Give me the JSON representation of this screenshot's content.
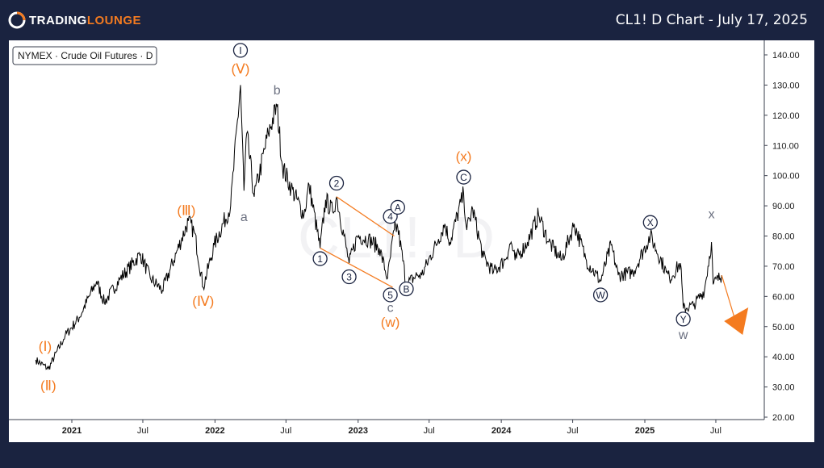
{
  "header": {
    "logo_prefix": "TRADING",
    "logo_suffix": "LOUNGE",
    "title": "CL1! D Chart - July 17, 2025",
    "accent_color": "#f47b20",
    "background_color": "#1a2340"
  },
  "chart_data": {
    "type": "line",
    "symbol_label": "NYMEX · Crude Oil Futures · D",
    "watermark": "CL1!, D",
    "x_ticks": [
      "2021",
      "Jul",
      "2022",
      "Jul",
      "2023",
      "Jul",
      "2024",
      "Jul",
      "2025",
      "Jul"
    ],
    "y_ticks": [
      "140.00",
      "130.00",
      "120.00",
      "110.00",
      "100.00",
      "90.00",
      "80.00",
      "70.00",
      "60.00",
      "50.00",
      "40.00",
      "30.00",
      "20.00"
    ],
    "ylim": [
      20,
      143
    ],
    "grid": false,
    "series": [
      {
        "values_by_date": [
          [
            "2020-10-01",
            39
          ],
          [
            "2020-11-02",
            36
          ],
          [
            "2020-12-15",
            47
          ],
          [
            "2021-01-20",
            53
          ],
          [
            "2021-03-05",
            65
          ],
          [
            "2021-03-25",
            58
          ],
          [
            "2021-05-05",
            66
          ],
          [
            "2021-06-25",
            74
          ],
          [
            "2021-07-20",
            66
          ],
          [
            "2021-08-20",
            62
          ],
          [
            "2021-10-25",
            85
          ],
          [
            "2021-11-10",
            81
          ],
          [
            "2021-12-02",
            63
          ],
          [
            "2021-12-30",
            77
          ],
          [
            "2022-02-10",
            90
          ],
          [
            "2022-03-07",
            130
          ],
          [
            "2022-03-16",
            95
          ],
          [
            "2022-03-23",
            114
          ],
          [
            "2022-04-11",
            93
          ],
          [
            "2022-05-17",
            114
          ],
          [
            "2022-06-08",
            123
          ],
          [
            "2022-06-22",
            103
          ],
          [
            "2022-07-14",
            96
          ],
          [
            "2022-08-16",
            87
          ],
          [
            "2022-08-29",
            97
          ],
          [
            "2022-09-26",
            76
          ],
          [
            "2022-10-10",
            92
          ],
          [
            "2022-10-28",
            88
          ],
          [
            "2022-11-07",
            93
          ],
          [
            "2022-12-09",
            71
          ],
          [
            "2022-12-30",
            80
          ],
          [
            "2023-01-27",
            79
          ],
          [
            "2023-02-24",
            76
          ],
          [
            "2023-03-17",
            66
          ],
          [
            "2023-04-03",
            82
          ],
          [
            "2023-04-12",
            83
          ],
          [
            "2023-05-04",
            64
          ],
          [
            "2023-05-31",
            67
          ],
          [
            "2023-06-12",
            67
          ],
          [
            "2023-07-25",
            79
          ],
          [
            "2023-08-10",
            84
          ],
          [
            "2023-08-23",
            78
          ],
          [
            "2023-09-27",
            94
          ],
          [
            "2023-10-05",
            82
          ],
          [
            "2023-10-20",
            89
          ],
          [
            "2023-11-16",
            73
          ],
          [
            "2023-12-12",
            68
          ],
          [
            "2024-01-10",
            72
          ],
          [
            "2024-01-26",
            78
          ],
          [
            "2024-02-05",
            72
          ],
          [
            "2024-03-08",
            78
          ],
          [
            "2024-04-05",
            87
          ],
          [
            "2024-05-01",
            78
          ],
          [
            "2024-06-03",
            72
          ],
          [
            "2024-07-05",
            84
          ],
          [
            "2024-08-05",
            72
          ],
          [
            "2024-09-10",
            65
          ],
          [
            "2024-10-07",
            77
          ],
          [
            "2024-10-25",
            67
          ],
          [
            "2024-12-02",
            68
          ],
          [
            "2025-01-15",
            80
          ],
          [
            "2025-02-25",
            68
          ],
          [
            "2025-03-05",
            66
          ],
          [
            "2025-04-02",
            71
          ],
          [
            "2025-04-09",
            56
          ],
          [
            "2025-05-05",
            57
          ],
          [
            "2025-06-02",
            62
          ],
          [
            "2025-06-20",
            78
          ],
          [
            "2025-06-24",
            64
          ],
          [
            "2025-07-16",
            67
          ]
        ]
      }
    ],
    "wave_labels": [
      {
        "text": "Ⅰ",
        "date": "2020-10-25",
        "price": 43.5,
        "color": "#f47b20",
        "style": "paren"
      },
      {
        "text": "Ⅱ",
        "date": "2020-11-02",
        "price": 30.5,
        "color": "#f47b20",
        "style": "paren"
      },
      {
        "text": "Ⅲ",
        "date": "2021-10-20",
        "price": 88.5,
        "color": "#f47b20",
        "style": "paren"
      },
      {
        "text": "Ⅳ",
        "date": "2021-12-02",
        "price": 58.5,
        "color": "#f47b20",
        "style": "paren"
      },
      {
        "text": "Ⅴ",
        "date": "2022-03-07",
        "price": 135.5,
        "color": "#f47b20",
        "style": "paren"
      },
      {
        "text": "Ⅰ",
        "date": "2022-03-07",
        "price": 141.5,
        "color": "#1a2340",
        "style": "circle"
      },
      {
        "text": "a",
        "date": "2022-03-16",
        "price": 86.5,
        "color": "#6b7080",
        "style": "plain"
      },
      {
        "text": "b",
        "date": "2022-06-08",
        "price": 128.5,
        "color": "#6b7080",
        "style": "plain"
      },
      {
        "text": "1",
        "date": "2022-09-26",
        "price": 72.5,
        "color": "#1a2340",
        "style": "circle"
      },
      {
        "text": "2",
        "date": "2022-11-07",
        "price": 97.5,
        "color": "#1a2340",
        "style": "circle"
      },
      {
        "text": "3",
        "date": "2022-12-09",
        "price": 66.5,
        "color": "#1a2340",
        "style": "circle"
      },
      {
        "text": "4",
        "date": "2023-03-24",
        "price": 86.5,
        "color": "#1a2340",
        "style": "circle"
      },
      {
        "text": "5",
        "date": "2023-03-24",
        "price": 60.5,
        "color": "#1a2340",
        "style": "circle"
      },
      {
        "text": "c",
        "date": "2023-03-24",
        "price": 56.5,
        "color": "#6b7080",
        "style": "plain"
      },
      {
        "text": "w",
        "date": "2023-03-24",
        "price": 51.5,
        "color": "#f47b20",
        "style": "paren"
      },
      {
        "text": "A",
        "date": "2023-04-12",
        "price": 89.5,
        "color": "#1a2340",
        "style": "circle"
      },
      {
        "text": "B",
        "date": "2023-05-04",
        "price": 62.5,
        "color": "#1a2340",
        "style": "circle"
      },
      {
        "text": "x",
        "date": "2023-09-27",
        "price": 106.5,
        "color": "#f47b20",
        "style": "paren"
      },
      {
        "text": "C",
        "date": "2023-09-27",
        "price": 99.5,
        "color": "#1a2340",
        "style": "circle"
      },
      {
        "text": "W",
        "date": "2024-09-10",
        "price": 60.5,
        "color": "#1a2340",
        "style": "circle"
      },
      {
        "text": "X",
        "date": "2025-01-15",
        "price": 84.5,
        "color": "#1a2340",
        "style": "circle"
      },
      {
        "text": "Y",
        "date": "2025-04-09",
        "price": 52.5,
        "color": "#1a2340",
        "style": "circle"
      },
      {
        "text": "w",
        "date": "2025-04-09",
        "price": 47.5,
        "color": "#6b7080",
        "style": "plain"
      },
      {
        "text": "x",
        "date": "2025-06-20",
        "price": 87.5,
        "color": "#6b7080",
        "style": "plain"
      }
    ],
    "channel_lines": [
      {
        "from": [
          "2022-09-26",
          76
        ],
        "to": [
          "2023-03-30",
          63
        ]
      },
      {
        "from": [
          "2022-11-07",
          93
        ],
        "to": [
          "2023-04-03",
          80
        ]
      }
    ],
    "projection": {
      "from": [
        "2025-07-16",
        67
      ],
      "to": [
        "2025-08-22",
        51
      ],
      "color": "#f47b20"
    }
  }
}
